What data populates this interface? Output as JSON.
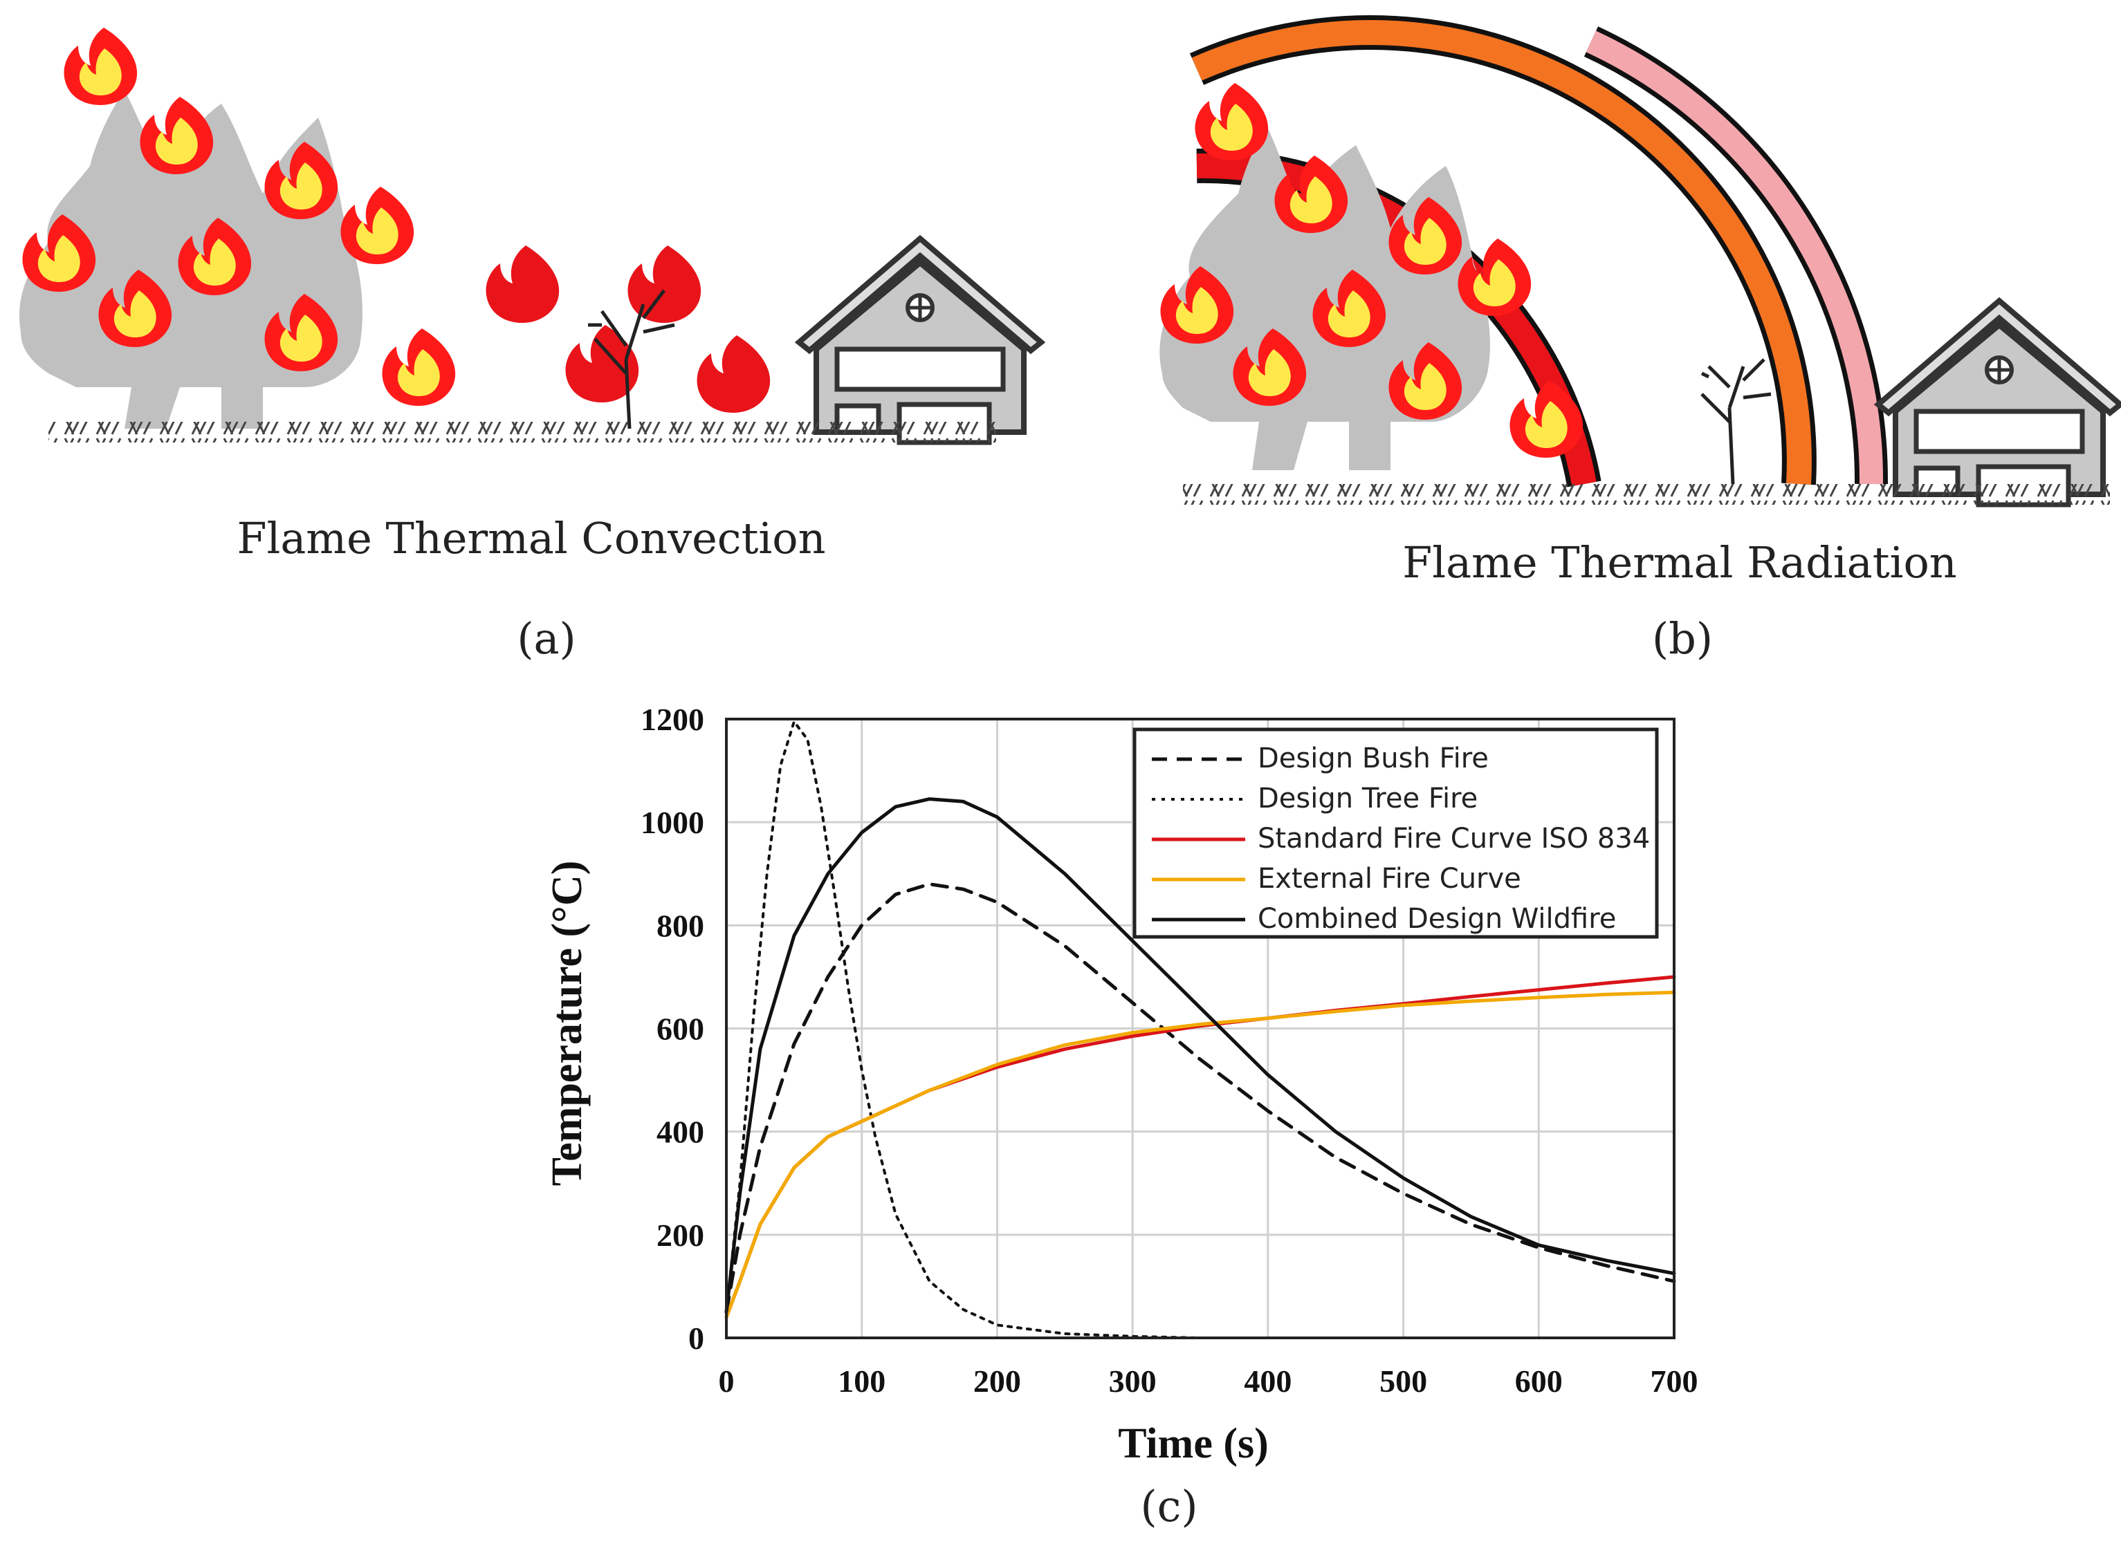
{
  "panel_a": {
    "caption": "Flame Thermal Convection",
    "label": "(a)"
  },
  "panel_b": {
    "caption": "Flame Thermal Radiation",
    "label": "(b)"
  },
  "panel_c": {
    "label": "(c)"
  },
  "colors": {
    "tree": "#c0c0c0",
    "flame_outer": "#ff1a1a",
    "flame_inner": "#ffe94a",
    "bush_flame": "#e8141a",
    "radiation_red": "#e8141a",
    "radiation_orange": "#f47320",
    "radiation_pink": "#f4a6ad",
    "house": "#c8c8c8",
    "iso_curve": "#d9141a",
    "external_curve": "#f2a900"
  },
  "chart_data": {
    "type": "line",
    "title": "",
    "xlabel": "Time (s)",
    "ylabel": "Temperature (°C)",
    "xlim": [
      0,
      700
    ],
    "ylim": [
      0,
      1200
    ],
    "xticks": [
      "0",
      "100",
      "200",
      "300",
      "400",
      "500",
      "600",
      "700"
    ],
    "yticks": [
      "0",
      "200",
      "400",
      "600",
      "800",
      "1000",
      "1200"
    ],
    "grid": true,
    "legend_position": "top-right",
    "series": [
      {
        "name": "Design Bush Fire",
        "style": "dashed",
        "color": "#111111",
        "points": [
          [
            0,
            50
          ],
          [
            10,
            200
          ],
          [
            25,
            370
          ],
          [
            50,
            570
          ],
          [
            75,
            700
          ],
          [
            100,
            800
          ],
          [
            125,
            860
          ],
          [
            150,
            880
          ],
          [
            175,
            870
          ],
          [
            200,
            845
          ],
          [
            250,
            760
          ],
          [
            300,
            650
          ],
          [
            350,
            540
          ],
          [
            400,
            440
          ],
          [
            450,
            350
          ],
          [
            500,
            280
          ],
          [
            550,
            220
          ],
          [
            600,
            175
          ],
          [
            650,
            140
          ],
          [
            700,
            110
          ]
        ]
      },
      {
        "name": "Design Tree Fire",
        "style": "dotted",
        "color": "#111111",
        "points": [
          [
            0,
            50
          ],
          [
            10,
            300
          ],
          [
            20,
            620
          ],
          [
            30,
            900
          ],
          [
            40,
            1110
          ],
          [
            50,
            1195
          ],
          [
            60,
            1160
          ],
          [
            70,
            1030
          ],
          [
            80,
            860
          ],
          [
            90,
            680
          ],
          [
            100,
            520
          ],
          [
            110,
            390
          ],
          [
            125,
            240
          ],
          [
            150,
            110
          ],
          [
            175,
            55
          ],
          [
            200,
            25
          ],
          [
            250,
            8
          ],
          [
            300,
            3
          ],
          [
            350,
            0
          ]
        ]
      },
      {
        "name": "Standard Fire Curve ISO 834",
        "style": "solid",
        "color": "#d9141a",
        "points": [
          [
            0,
            40
          ],
          [
            10,
            110
          ],
          [
            25,
            220
          ],
          [
            50,
            330
          ],
          [
            75,
            390
          ],
          [
            100,
            420
          ],
          [
            125,
            450
          ],
          [
            150,
            480
          ],
          [
            200,
            525
          ],
          [
            250,
            560
          ],
          [
            300,
            585
          ],
          [
            350,
            605
          ],
          [
            400,
            620
          ],
          [
            450,
            635
          ],
          [
            500,
            648
          ],
          [
            550,
            662
          ],
          [
            600,
            675
          ],
          [
            650,
            688
          ],
          [
            700,
            700
          ]
        ]
      },
      {
        "name": "External Fire Curve",
        "style": "solid",
        "color": "#f2a900",
        "points": [
          [
            0,
            40
          ],
          [
            10,
            110
          ],
          [
            25,
            220
          ],
          [
            50,
            330
          ],
          [
            75,
            390
          ],
          [
            100,
            420
          ],
          [
            125,
            450
          ],
          [
            150,
            480
          ],
          [
            200,
            530
          ],
          [
            250,
            568
          ],
          [
            300,
            592
          ],
          [
            350,
            608
          ],
          [
            400,
            620
          ],
          [
            450,
            633
          ],
          [
            500,
            645
          ],
          [
            550,
            653
          ],
          [
            600,
            660
          ],
          [
            650,
            666
          ],
          [
            700,
            670
          ]
        ]
      },
      {
        "name": "Combined Design Wildfire",
        "style": "solid",
        "color": "#111111",
        "points": [
          [
            0,
            50
          ],
          [
            10,
            280
          ],
          [
            25,
            560
          ],
          [
            50,
            780
          ],
          [
            75,
            900
          ],
          [
            100,
            980
          ],
          [
            125,
            1030
          ],
          [
            150,
            1045
          ],
          [
            175,
            1040
          ],
          [
            200,
            1010
          ],
          [
            250,
            900
          ],
          [
            300,
            770
          ],
          [
            350,
            640
          ],
          [
            400,
            510
          ],
          [
            450,
            400
          ],
          [
            500,
            310
          ],
          [
            550,
            235
          ],
          [
            600,
            180
          ],
          [
            650,
            150
          ],
          [
            700,
            125
          ]
        ]
      }
    ]
  }
}
